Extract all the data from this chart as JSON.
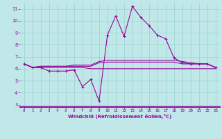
{
  "xlabel": "Windchill (Refroidissement éolien,°C)",
  "background_color": "#c0e8e8",
  "grid_color": "#98d0d0",
  "line_color": "#990099",
  "axis_color": "#990099",
  "x_hours": [
    0,
    1,
    2,
    3,
    4,
    5,
    6,
    7,
    8,
    9,
    10,
    11,
    12,
    13,
    14,
    15,
    16,
    17,
    18,
    19,
    20,
    21,
    22,
    23
  ],
  "series1": [
    6.4,
    6.1,
    6.1,
    5.8,
    5.8,
    5.8,
    5.9,
    4.5,
    5.1,
    3.3,
    8.8,
    10.4,
    8.7,
    11.2,
    10.3,
    9.6,
    8.8,
    8.5,
    6.9,
    6.5,
    6.4,
    6.4,
    6.4,
    6.1
  ],
  "series2": [
    6.4,
    6.1,
    6.2,
    6.2,
    6.2,
    6.2,
    6.3,
    6.3,
    6.3,
    6.6,
    6.7,
    6.7,
    6.7,
    6.7,
    6.7,
    6.7,
    6.7,
    6.7,
    6.7,
    6.6,
    6.5,
    6.4,
    6.4,
    6.1
  ],
  "series3": [
    6.4,
    6.1,
    6.2,
    6.2,
    6.2,
    6.2,
    6.2,
    6.2,
    6.2,
    6.5,
    6.55,
    6.55,
    6.55,
    6.55,
    6.55,
    6.55,
    6.55,
    6.55,
    6.55,
    6.4,
    6.4,
    6.4,
    6.4,
    6.1
  ],
  "series4": [
    6.4,
    6.1,
    6.1,
    6.1,
    6.1,
    6.1,
    6.1,
    6.1,
    6.0,
    6.0,
    6.0,
    6.0,
    6.0,
    6.0,
    6.0,
    6.0,
    6.0,
    6.0,
    6.0,
    6.0,
    6.0,
    6.0,
    6.0,
    6.0
  ],
  "ylim_min": 2.8,
  "ylim_max": 11.5,
  "yticks": [
    3,
    4,
    5,
    6,
    7,
    8,
    9,
    10,
    11
  ],
  "xlim_min": -0.5,
  "xlim_max": 23.5
}
